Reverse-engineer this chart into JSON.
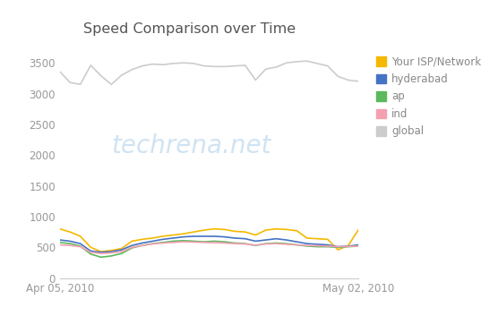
{
  "title": "Speed Comparison over Time",
  "watermark": "techrena.net",
  "xlabel_left": "Apr 05, 2010",
  "xlabel_right": "May 02, 2010",
  "ylim": [
    0,
    3700
  ],
  "yticks": [
    0,
    500,
    1000,
    1500,
    2000,
    2500,
    3000,
    3500
  ],
  "legend_labels": [
    "Your ISP/Network",
    "hyderabad",
    "ap",
    "ind",
    "global"
  ],
  "legend_colors": [
    "#f5b800",
    "#4472c4",
    "#5cb85c",
    "#f4a0b0",
    "#cccccc"
  ],
  "series": {
    "isp": {
      "color": "#f5b800",
      "y": [
        800,
        750,
        680,
        500,
        430,
        450,
        480,
        600,
        630,
        650,
        680,
        700,
        720,
        750,
        780,
        800,
        790,
        760,
        750,
        700,
        780,
        800,
        790,
        770,
        650,
        640,
        630,
        460,
        530,
        790
      ]
    },
    "hyderabad": {
      "color": "#4472c4",
      "y": [
        620,
        600,
        560,
        440,
        420,
        430,
        460,
        530,
        570,
        600,
        630,
        650,
        670,
        680,
        680,
        680,
        670,
        650,
        640,
        600,
        620,
        640,
        620,
        590,
        560,
        550,
        540,
        510,
        520,
        540
      ]
    },
    "ap": {
      "color": "#5cb85c",
      "y": [
        580,
        560,
        520,
        390,
        340,
        360,
        400,
        490,
        530,
        560,
        580,
        600,
        610,
        600,
        590,
        600,
        590,
        570,
        560,
        530,
        560,
        570,
        560,
        540,
        520,
        510,
        510,
        500,
        510,
        520
      ]
    },
    "ind": {
      "color": "#f4a0b0",
      "y": [
        540,
        530,
        510,
        420,
        400,
        410,
        430,
        500,
        530,
        555,
        570,
        580,
        590,
        585,
        580,
        575,
        570,
        560,
        555,
        535,
        555,
        560,
        550,
        540,
        530,
        525,
        520,
        510,
        515,
        520
      ]
    },
    "global": {
      "color": "#cccccc",
      "y": [
        3360,
        3180,
        3150,
        3460,
        3290,
        3150,
        3300,
        3390,
        3450,
        3480,
        3470,
        3490,
        3500,
        3490,
        3450,
        3440,
        3440,
        3450,
        3460,
        3220,
        3400,
        3430,
        3500,
        3520,
        3530,
        3490,
        3450,
        3280,
        3220,
        3200
      ]
    }
  }
}
